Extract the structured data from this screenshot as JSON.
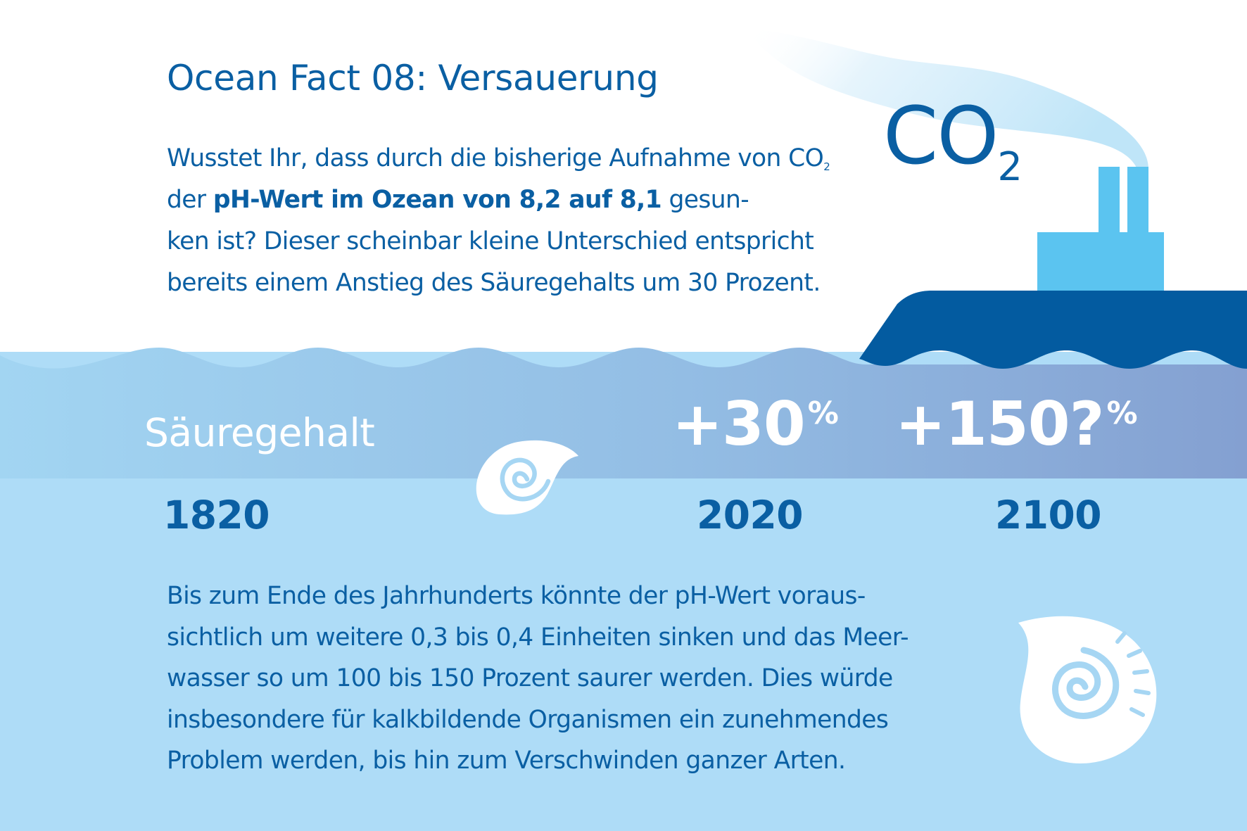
{
  "title": "Ocean Fact 08: Versauerung",
  "intro": {
    "line1_text": "Wusstet Ihr, dass durch die bisherige Aufnahme von CO",
    "line1_sub": "2",
    "line2_pre": "der ",
    "line2_bold": "pH-Wert im Ozean von 8,2 auf 8,1",
    "line2_post": " gesun-",
    "line3": "ken ist? Dieser scheinbar kleine Unterschied entspricht",
    "line4": "bereits einem Anstieg des Säuregehalts um 30 Prozent."
  },
  "co2_label": {
    "main": "CO",
    "sub": "2"
  },
  "acidity_label": "Säuregehalt",
  "milestones": [
    {
      "year": "1820",
      "value": ""
    },
    {
      "year": "2020",
      "value": "+30",
      "unit": "%"
    },
    {
      "year": "2100",
      "value": "+150?",
      "unit": "%"
    }
  ],
  "body": [
    "Bis zum Ende des Jahrhunderts könnte der pH-Wert voraus-",
    "sichtlich um weitere 0,3 bis 0,4 Einheiten sinken und das Meer-",
    "wasser so um 100 bis 150 Prozent saurer werden. Dies würde",
    "insbesondere für kalkbildende Organismen ein zunehmendes",
    "Problem werden, bis hin zum Verschwinden ganzer Arten."
  ],
  "icons": [
    "ship-icon",
    "smoke-plume-icon",
    "small-shell-icon",
    "large-shell-icon"
  ],
  "colors": {
    "dark_blue": "#0a5fa3",
    "ship_hull": "#035ba0",
    "chimney": "#5bc4f0",
    "band_left": "#9fd1f0",
    "band_right": "#86a3d3",
    "water": "#aedcf7",
    "text_white": "#ffffff"
  }
}
